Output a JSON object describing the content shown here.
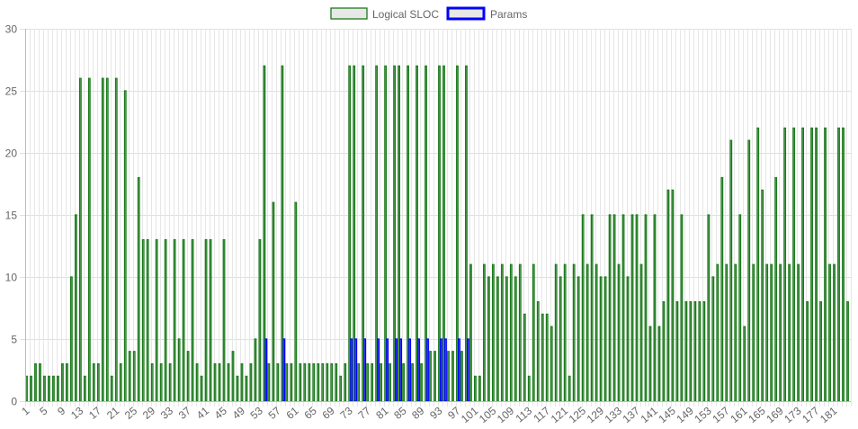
{
  "chart_data": {
    "type": "bar",
    "legend_position": "top",
    "grid": true,
    "ylim": [
      0,
      30
    ],
    "yticks": [
      0,
      5,
      10,
      15,
      20,
      25,
      30
    ],
    "x_label_every": 4,
    "series": [
      {
        "name": "Logical SLOC",
        "fill": "#e8e8e8",
        "border": "#1a7a1a",
        "values": [
          2,
          2,
          3,
          3,
          2,
          2,
          2,
          2,
          3,
          3,
          10,
          15,
          26,
          2,
          26,
          3,
          3,
          26,
          26,
          2,
          26,
          3,
          25,
          4,
          4,
          18,
          13,
          13,
          3,
          13,
          3,
          13,
          3,
          13,
          5,
          13,
          4,
          13,
          3,
          2,
          13,
          13,
          3,
          3,
          13,
          3,
          4,
          2,
          3,
          2,
          3,
          5,
          13,
          27,
          3,
          16,
          3,
          27,
          3,
          3,
          16,
          3,
          3,
          3,
          3,
          3,
          3,
          3,
          3,
          3,
          2,
          3,
          27,
          27,
          3,
          27,
          3,
          3,
          27,
          3,
          27,
          3,
          27,
          27,
          3,
          27,
          3,
          27,
          3,
          27,
          4,
          4,
          27,
          27,
          4,
          4,
          27,
          4,
          27,
          11,
          2,
          2,
          11,
          10,
          11,
          10,
          11,
          10,
          11,
          10,
          11,
          7,
          2,
          11,
          8,
          7,
          7,
          6,
          11,
          10,
          11,
          2,
          11,
          10,
          15,
          11,
          15,
          11,
          10,
          10,
          15,
          15,
          11,
          15,
          10,
          15,
          15,
          11,
          15,
          6,
          15,
          6,
          8,
          17,
          17,
          8,
          15,
          8,
          8,
          8,
          8,
          8,
          15,
          10,
          11,
          18,
          11,
          21,
          11,
          15,
          6,
          21,
          11,
          22,
          17,
          11,
          11,
          18,
          11,
          22,
          11,
          22,
          11,
          22,
          8,
          22,
          22,
          8,
          22,
          11,
          11,
          22,
          22,
          8
        ]
      },
      {
        "name": "Params",
        "fill": "#e8e8e8",
        "border": "#0000ff",
        "values": [
          0,
          0,
          0,
          0,
          0,
          0,
          0,
          0,
          0,
          0,
          0,
          0,
          0,
          0,
          0,
          0,
          0,
          0,
          0,
          0,
          0,
          0,
          0,
          0,
          0,
          0,
          0,
          0,
          0,
          0,
          0,
          0,
          0,
          0,
          0,
          0,
          0,
          0,
          0,
          0,
          0,
          0,
          0,
          0,
          0,
          0,
          0,
          0,
          0,
          0,
          0,
          0,
          0,
          5,
          0,
          0,
          0,
          5,
          0,
          0,
          0,
          0,
          0,
          0,
          0,
          0,
          0,
          0,
          0,
          0,
          0,
          0,
          5,
          5,
          0,
          5,
          0,
          0,
          5,
          0,
          5,
          0,
          5,
          5,
          0,
          5,
          0,
          5,
          0,
          5,
          0,
          0,
          5,
          5,
          0,
          0,
          5,
          0,
          5,
          0,
          0,
          0,
          0,
          0,
          0,
          0,
          0,
          0,
          0,
          0,
          0,
          0,
          0,
          0,
          0,
          0,
          0,
          0,
          0,
          0,
          0,
          0,
          0,
          0,
          0,
          0,
          0,
          0,
          0,
          0,
          0,
          0,
          0,
          0,
          0,
          0,
          0,
          0,
          0,
          0,
          0,
          0,
          0,
          0,
          0,
          0,
          0,
          0,
          0,
          0,
          0,
          0,
          0,
          0,
          0,
          0,
          0,
          0,
          0,
          0,
          0,
          0,
          0,
          0,
          0,
          0,
          0,
          0,
          0,
          0,
          0,
          0,
          0,
          0,
          0,
          0,
          0,
          0,
          0,
          0,
          0,
          0,
          0,
          0
        ]
      }
    ]
  }
}
